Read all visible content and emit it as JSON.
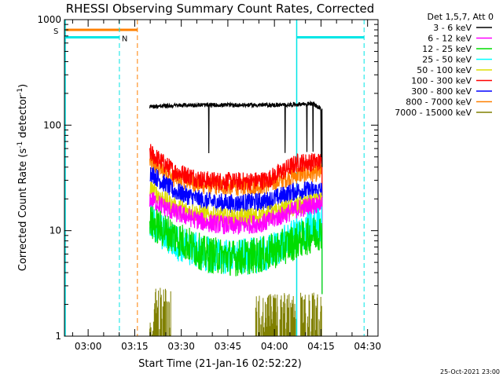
{
  "chart_data": {
    "type": "line",
    "title": "RHESSI Observing Summary Count Rates, Corrected",
    "ylabel": "Corrected Count Rate (s⁻¹ detector⁻¹)",
    "ylabel_main": "Corrected Count Rate (s",
    "ylabel_sup1": "-1",
    "ylabel_mid": " detector",
    "ylabel_sup2": "-1",
    "ylabel_end": ")",
    "xlabel": "Start Time (21-Jan-16 02:52:22)",
    "yscale": "log",
    "ylim": [
      1,
      1000
    ],
    "xlim_minutes": [
      0,
      101
    ],
    "x_tick_labels": [
      "03:00",
      "03:15",
      "03:30",
      "03:45",
      "04:00",
      "04:15",
      "04:30"
    ],
    "x_tick_minutes": [
      7.63,
      22.63,
      37.63,
      52.63,
      67.63,
      82.63,
      97.63
    ],
    "y_tick_labels": [
      "1",
      "10",
      "100",
      "1000"
    ],
    "y_tick_values": [
      1,
      10,
      100,
      1000
    ],
    "legend_title": "Det 1,5,7, Att 0",
    "legend_position": "right",
    "date_stamp": "25-Oct-2021 23:00",
    "flags": [
      {
        "label": "S",
        "color": "#ff8000",
        "intervals": [
          [
            0,
            23.5
          ]
        ],
        "level": 800,
        "start_dashed": 23.5
      },
      {
        "label": "N",
        "color": "#00e6e6",
        "intervals": [
          [
            0,
            17.7
          ],
          [
            74.8,
            96.5
          ]
        ],
        "level": 680,
        "dashed_lines": [
          17.7,
          96.5
        ],
        "solid_lines": [
          0,
          74.8
        ]
      }
    ],
    "series": [
      {
        "name": "3 - 6 keV",
        "color": "#000000",
        "profile": "flat",
        "start": 27.5,
        "end": 83.0,
        "values_minutes": [
          27.5,
          40,
          55,
          70,
          80,
          83
        ],
        "values": [
          150,
          155,
          155,
          155,
          160,
          140
        ]
      },
      {
        "name": "6 - 12 keV",
        "color": "#ff00ff",
        "profile": "dip",
        "start": 27.5,
        "end": 83.0,
        "values_minutes": [
          27.5,
          35,
          45,
          55,
          65,
          75,
          83
        ],
        "values": [
          20,
          15,
          12,
          11,
          12,
          16,
          18
        ]
      },
      {
        "name": "12 - 25 keV",
        "color": "#00dd00",
        "profile": "dip",
        "start": 27.5,
        "end": 83.0,
        "values_minutes": [
          27.5,
          35,
          45,
          55,
          65,
          75,
          83
        ],
        "values": [
          12,
          9,
          6,
          5.5,
          6,
          8,
          10
        ]
      },
      {
        "name": "25 - 50 keV",
        "color": "#00ffff",
        "profile": "dip",
        "start": 27.5,
        "end": 83.0,
        "values_minutes": [
          27.5,
          35,
          45,
          55,
          65,
          75,
          83
        ],
        "values": [
          12,
          8,
          6,
          5.5,
          6,
          9,
          12
        ]
      },
      {
        "name": "50 - 100 keV",
        "color": "#dddd00",
        "profile": "dip",
        "start": 27.5,
        "end": 83.0,
        "values_minutes": [
          27.5,
          35,
          45,
          55,
          65,
          75,
          83
        ],
        "values": [
          25,
          17,
          14,
          13,
          14,
          17,
          19
        ]
      },
      {
        "name": "100 - 300 keV",
        "color": "#ff0000",
        "profile": "dip",
        "start": 27.5,
        "end": 83.0,
        "values_minutes": [
          27.5,
          35,
          45,
          55,
          65,
          75,
          83
        ],
        "values": [
          55,
          37,
          30,
          29,
          30,
          44,
          45
        ]
      },
      {
        "name": "300 - 800 keV",
        "color": "#0000ff",
        "profile": "dip",
        "start": 27.5,
        "end": 83.0,
        "values_minutes": [
          27.5,
          35,
          45,
          55,
          65,
          75,
          83
        ],
        "values": [
          36,
          24,
          19,
          18,
          19,
          24,
          24
        ]
      },
      {
        "name": "800 - 7000 keV",
        "color": "#ff8000",
        "profile": "dip",
        "start": 27.5,
        "end": 83.0,
        "values_minutes": [
          27.5,
          35,
          45,
          55,
          65,
          75,
          83
        ],
        "values": [
          45,
          32,
          27,
          26,
          27,
          34,
          36
        ]
      },
      {
        "name": "7000 - 15000 keV",
        "color": "#808000",
        "profile": "bursts",
        "start": 27.5,
        "end": 83.0,
        "values_minutes": [
          27.5,
          33,
          63,
          82
        ],
        "values": [
          2.5,
          1.5,
          2.5,
          2.0
        ]
      }
    ]
  }
}
